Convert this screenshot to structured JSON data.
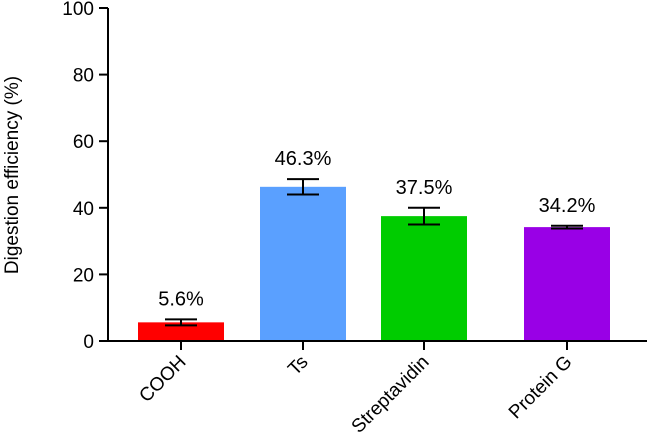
{
  "chart_data": {
    "type": "bar",
    "title": "",
    "xlabel": "",
    "ylabel": "Digestion efficiency (%)",
    "ylim": [
      0,
      100
    ],
    "yticks": [
      0,
      20,
      40,
      60,
      80,
      100
    ],
    "ytick_labels": [
      "0",
      "20",
      "40",
      "60",
      "80",
      "100"
    ],
    "grid": false,
    "legend": "none",
    "categories": [
      "COOH",
      "Ts",
      "Streptavidin",
      "Protein G"
    ],
    "values": [
      5.6,
      46.3,
      37.5,
      34.2
    ],
    "error": [
      0.9,
      2.3,
      2.5,
      0.4
    ],
    "data_labels": [
      "5.6%",
      "46.3%",
      "37.5%",
      "34.2%"
    ],
    "colors": [
      "#ff0000",
      "#5aa0ff",
      "#00cc00",
      "#9900e6"
    ]
  }
}
